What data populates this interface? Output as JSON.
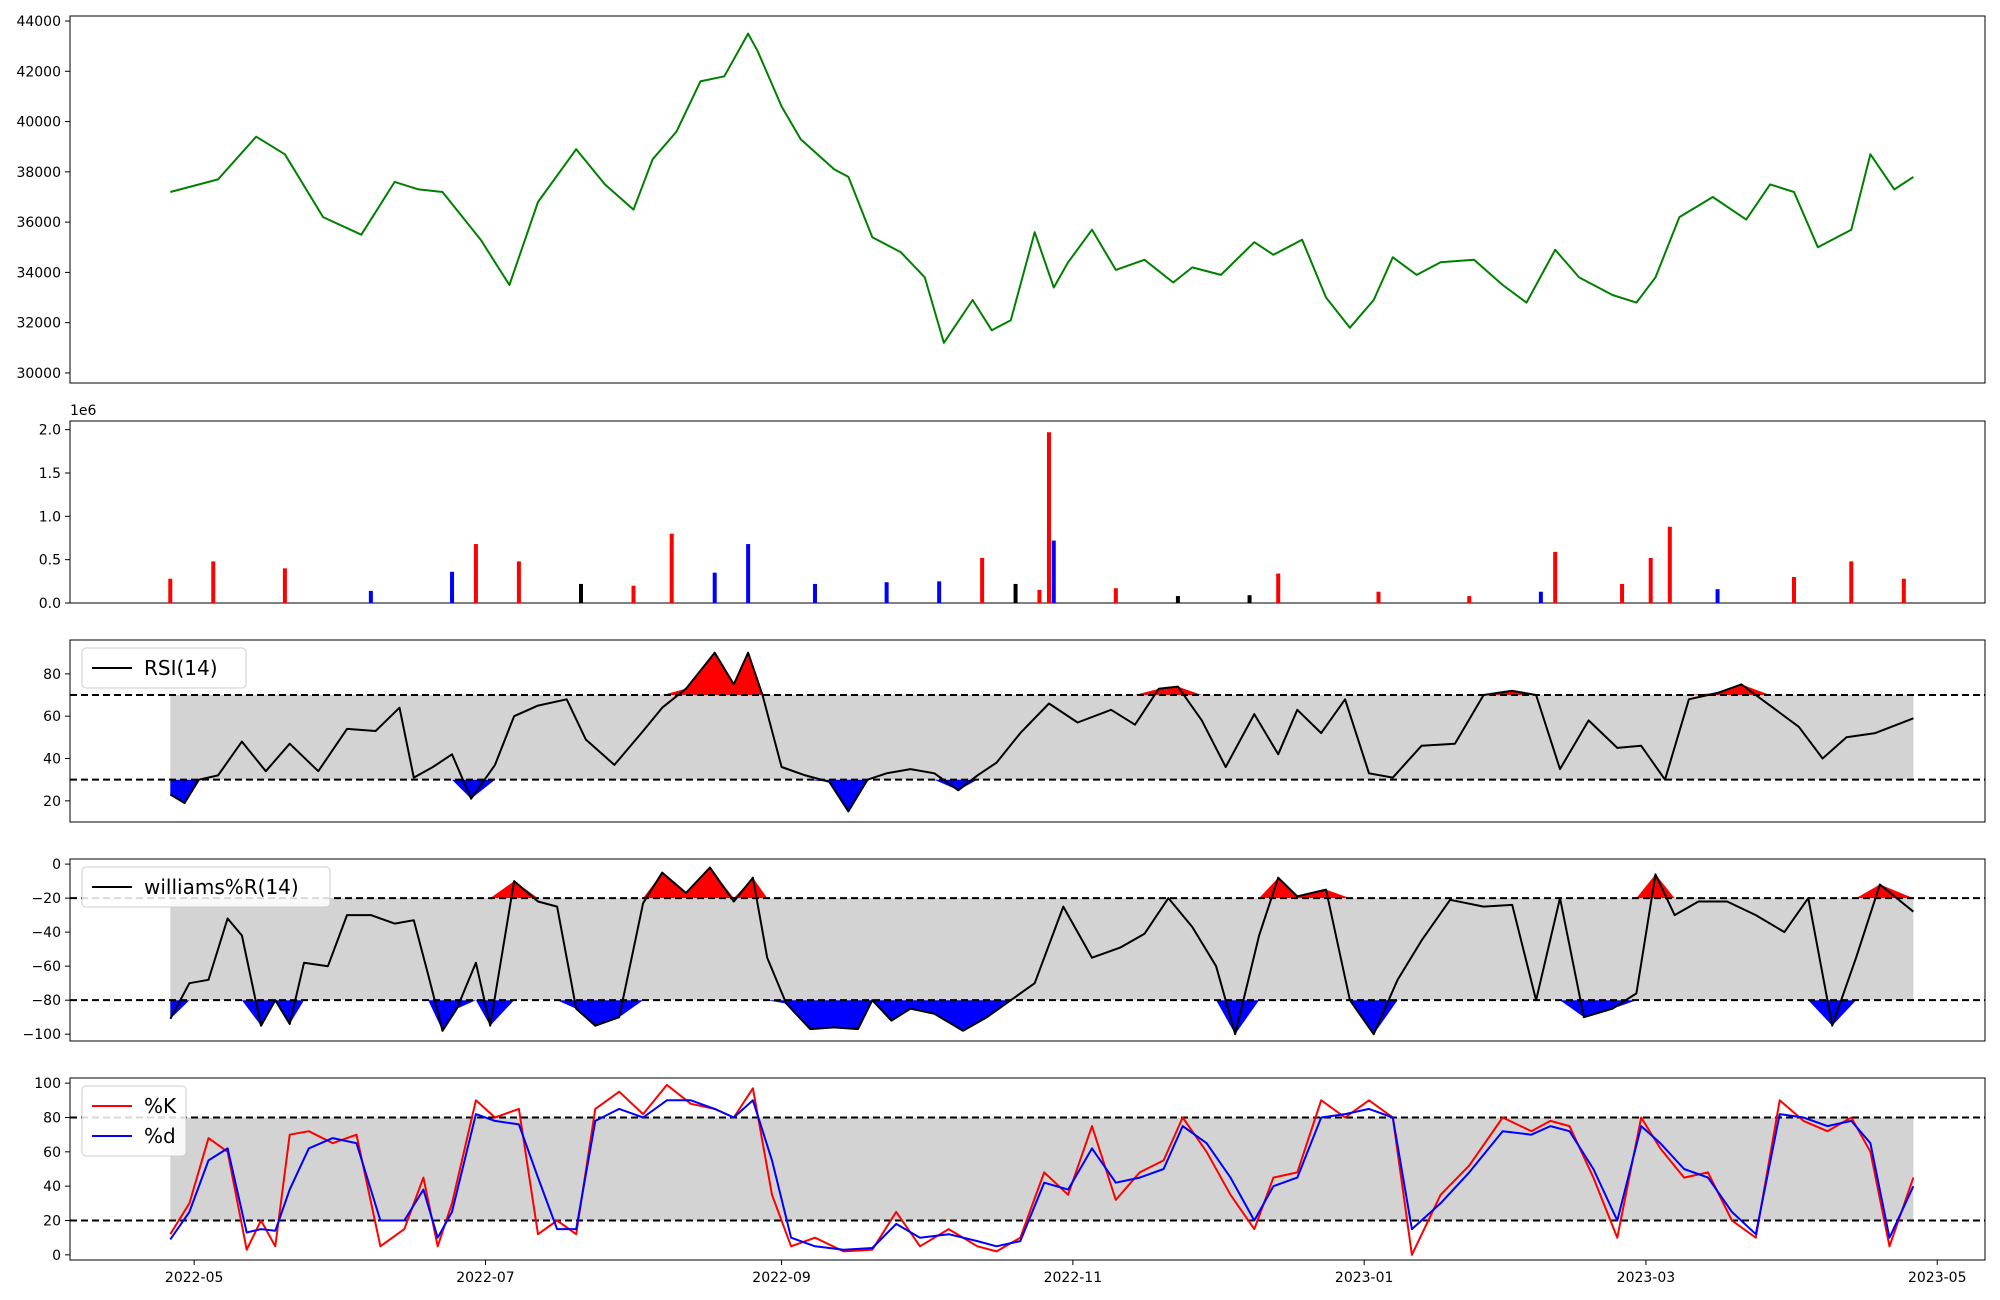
{
  "chart_data": [
    {
      "type": "line",
      "panel": "price",
      "color": "#008000",
      "ylim": [
        29600,
        44200
      ],
      "yticks": [
        "30000",
        "32000",
        "34000",
        "36000",
        "38000",
        "40000",
        "42000",
        "44000"
      ],
      "ytick_values": [
        30000,
        32000,
        34000,
        36000,
        38000,
        40000,
        42000,
        44000
      ],
      "x": [
        "2022-04-26",
        "2022-05-06",
        "2022-05-14",
        "2022-05-20",
        "2022-05-28",
        "2022-06-05",
        "2022-06-12",
        "2022-06-17",
        "2022-06-22",
        "2022-06-30",
        "2022-07-06",
        "2022-07-12",
        "2022-07-20",
        "2022-07-26",
        "2022-08-01",
        "2022-08-05",
        "2022-08-10",
        "2022-08-15",
        "2022-08-20",
        "2022-08-25",
        "2022-08-27",
        "2022-09-01",
        "2022-09-05",
        "2022-09-12",
        "2022-09-15",
        "2022-09-20",
        "2022-09-26",
        "2022-10-01",
        "2022-10-05",
        "2022-10-11",
        "2022-10-15",
        "2022-10-19",
        "2022-10-24",
        "2022-10-28",
        "2022-10-31",
        "2022-11-05",
        "2022-11-10",
        "2022-11-16",
        "2022-11-22",
        "2022-11-26",
        "2022-12-02",
        "2022-12-09",
        "2022-12-13",
        "2022-12-19",
        "2022-12-24",
        "2022-12-29",
        "2023-01-03",
        "2023-01-07",
        "2023-01-12",
        "2023-01-17",
        "2023-01-24",
        "2023-01-30",
        "2023-02-04",
        "2023-02-10",
        "2023-02-15",
        "2023-02-22",
        "2023-02-27",
        "2023-03-03",
        "2023-03-08",
        "2023-03-15",
        "2023-03-22",
        "2023-03-27",
        "2023-04-01",
        "2023-04-06",
        "2023-04-13",
        "2023-04-17",
        "2023-04-22",
        "2023-04-26"
      ],
      "values": [
        37200,
        37700,
        39400,
        38700,
        36200,
        35500,
        37600,
        37300,
        37200,
        35300,
        33500,
        36800,
        38900,
        37500,
        36500,
        38500,
        39600,
        41600,
        41800,
        43500,
        42800,
        40600,
        39300,
        38100,
        37800,
        35400,
        34800,
        33800,
        31200,
        32900,
        31700,
        32100,
        35600,
        33400,
        34400,
        35700,
        34100,
        34500,
        33600,
        34200,
        33900,
        35200,
        34700,
        35300,
        33000,
        31800,
        32900,
        34600,
        33900,
        34400,
        34500,
        33500,
        32800,
        34900,
        33800,
        33100,
        32800,
        33800,
        36200,
        37000,
        36100,
        37500,
        37200,
        35000,
        35700,
        38700,
        37300,
        37800
      ]
    },
    {
      "type": "bar",
      "panel": "volume",
      "multiplier_label": "1e6",
      "ylim": [
        0,
        2.1
      ],
      "yticks": [
        "0.0",
        "0.5",
        "1.0",
        "1.5",
        "2.0"
      ],
      "ytick_values": [
        0,
        0.5,
        1.0,
        1.5,
        2.0
      ],
      "colors": {
        "up": "#ff0000",
        "down": "#0000ff",
        "flat": "#000000"
      },
      "x": [
        "2022-04-26",
        "2022-05-05",
        "2022-05-20",
        "2022-06-07",
        "2022-06-24",
        "2022-06-29",
        "2022-07-08",
        "2022-07-21",
        "2022-08-01",
        "2022-08-09",
        "2022-08-18",
        "2022-08-25",
        "2022-09-08",
        "2022-09-23",
        "2022-10-04",
        "2022-10-13",
        "2022-10-20",
        "2022-10-25",
        "2022-10-27",
        "2022-10-28",
        "2022-11-10",
        "2022-11-23",
        "2022-12-08",
        "2022-12-14",
        "2023-01-04",
        "2023-01-23",
        "2023-02-07",
        "2023-02-10",
        "2023-02-24",
        "2023-03-02",
        "2023-03-06",
        "2023-03-16",
        "2023-04-01",
        "2023-04-13",
        "2023-04-24"
      ],
      "values": [
        0.28,
        0.48,
        0.4,
        0.14,
        0.36,
        0.68,
        0.48,
        0.22,
        0.2,
        0.8,
        0.35,
        0.68,
        0.22,
        0.24,
        0.25,
        0.52,
        0.22,
        0.15,
        1.97,
        0.72,
        0.17,
        0.08,
        0.09,
        0.34,
        0.13,
        0.08,
        0.13,
        0.59,
        0.22,
        0.52,
        0.88,
        0.16,
        0.3,
        0.48,
        0.28
      ],
      "directions": [
        "up",
        "up",
        "up",
        "down",
        "down",
        "up",
        "up",
        "flat",
        "up",
        "up",
        "down",
        "down",
        "down",
        "down",
        "down",
        "up",
        "flat",
        "up",
        "up",
        "down",
        "up",
        "flat",
        "flat",
        "up",
        "up",
        "up",
        "down",
        "up",
        "up",
        "up",
        "up",
        "down",
        "up",
        "up",
        "up"
      ]
    },
    {
      "type": "line",
      "panel": "rsi",
      "series": [
        {
          "name": "RSI(14)",
          "color": "#000000"
        }
      ],
      "ylim": [
        10,
        96
      ],
      "yticks": [
        "20",
        "40",
        "60",
        "80"
      ],
      "ytick_values": [
        20,
        40,
        60,
        80
      ],
      "thresholds": [
        30,
        70
      ],
      "fill_colors": {
        "band": "#d3d3d3",
        "over": "#ff0000",
        "under": "#0000ff"
      },
      "x": [
        "2022-04-26",
        "2022-04-29",
        "2022-05-02",
        "2022-05-06",
        "2022-05-11",
        "2022-05-16",
        "2022-05-21",
        "2022-05-27",
        "2022-06-02",
        "2022-06-08",
        "2022-06-13",
        "2022-06-16",
        "2022-06-20",
        "2022-06-24",
        "2022-06-28",
        "2022-07-03",
        "2022-07-07",
        "2022-07-12",
        "2022-07-18",
        "2022-07-22",
        "2022-07-28",
        "2022-08-03",
        "2022-08-07",
        "2022-08-12",
        "2022-08-18",
        "2022-08-22",
        "2022-08-25",
        "2022-08-28",
        "2022-09-01",
        "2022-09-06",
        "2022-09-11",
        "2022-09-15",
        "2022-09-19",
        "2022-09-23",
        "2022-09-28",
        "2022-10-03",
        "2022-10-08",
        "2022-10-12",
        "2022-10-16",
        "2022-10-21",
        "2022-10-27",
        "2022-11-02",
        "2022-11-09",
        "2022-11-14",
        "2022-11-19",
        "2022-11-23",
        "2022-11-28",
        "2022-12-03",
        "2022-12-09",
        "2022-12-14",
        "2022-12-18",
        "2022-12-23",
        "2022-12-28",
        "2023-01-02",
        "2023-01-07",
        "2023-01-13",
        "2023-01-20",
        "2023-01-26",
        "2023-02-01",
        "2023-02-06",
        "2023-02-11",
        "2023-02-17",
        "2023-02-23",
        "2023-02-28",
        "2023-03-05",
        "2023-03-10",
        "2023-03-16",
        "2023-03-21",
        "2023-03-27",
        "2023-04-02",
        "2023-04-07",
        "2023-04-12",
        "2023-04-18",
        "2023-04-26"
      ],
      "values": [
        23,
        19,
        30,
        32,
        48,
        34,
        47,
        34,
        54,
        53,
        64,
        31,
        36,
        42,
        21,
        37,
        60,
        65,
        68,
        49,
        37,
        53,
        64,
        73,
        90,
        75,
        90,
        70,
        36,
        32,
        29,
        15,
        30,
        33,
        35,
        33,
        25,
        32,
        38,
        52,
        66,
        57,
        63,
        56,
        73,
        74,
        58,
        36,
        61,
        42,
        63,
        52,
        68,
        33,
        31,
        46,
        47,
        70,
        72,
        70,
        35,
        58,
        45,
        46,
        30,
        68,
        71,
        75,
        65,
        55,
        40,
        50,
        52,
        59
      ]
    },
    {
      "type": "line",
      "panel": "williams",
      "series": [
        {
          "name": "williams%R(14)",
          "color": "#000000"
        }
      ],
      "ylim": [
        -104,
        3
      ],
      "yticks": [
        "−100",
        "−80",
        "−60",
        "−40",
        "−20",
        "0"
      ],
      "ytick_values": [
        -100,
        -80,
        -60,
        -40,
        -20,
        0
      ],
      "thresholds": [
        -80,
        -20
      ],
      "fill_colors": {
        "band": "#d3d3d3",
        "over": "#ff0000",
        "under": "#0000ff"
      },
      "x": [
        "2022-04-26",
        "2022-04-30",
        "2022-05-04",
        "2022-05-08",
        "2022-05-11",
        "2022-05-15",
        "2022-05-18",
        "2022-05-21",
        "2022-05-24",
        "2022-05-29",
        "2022-06-02",
        "2022-06-07",
        "2022-06-12",
        "2022-06-16",
        "2022-06-19",
        "2022-06-22",
        "2022-06-25",
        "2022-06-29",
        "2022-07-02",
        "2022-07-07",
        "2022-07-12",
        "2022-07-16",
        "2022-07-20",
        "2022-07-24",
        "2022-07-29",
        "2022-08-03",
        "2022-08-07",
        "2022-08-12",
        "2022-08-17",
        "2022-08-22",
        "2022-08-26",
        "2022-08-29",
        "2022-09-02",
        "2022-09-07",
        "2022-09-12",
        "2022-09-17",
        "2022-09-20",
        "2022-09-24",
        "2022-09-28",
        "2022-10-03",
        "2022-10-09",
        "2022-10-14",
        "2022-10-19",
        "2022-10-24",
        "2022-10-30",
        "2022-11-05",
        "2022-11-11",
        "2022-11-16",
        "2022-11-21",
        "2022-11-26",
        "2022-12-01",
        "2022-12-05",
        "2022-12-10",
        "2022-12-14",
        "2022-12-18",
        "2022-12-24",
        "2022-12-29",
        "2023-01-03",
        "2023-01-08",
        "2023-01-13",
        "2023-01-19",
        "2023-01-26",
        "2023-02-01",
        "2023-02-06",
        "2023-02-11",
        "2023-02-16",
        "2023-02-22",
        "2023-02-27",
        "2023-03-03",
        "2023-03-07",
        "2023-03-12",
        "2023-03-18",
        "2023-03-24",
        "2023-03-30",
        "2023-04-04",
        "2023-04-09",
        "2023-04-14",
        "2023-04-19",
        "2023-04-26"
      ],
      "values": [
        -91,
        -70,
        -68,
        -32,
        -42,
        -95,
        -80,
        -94,
        -58,
        -60,
        -30,
        -30,
        -35,
        -33,
        -65,
        -98,
        -85,
        -58,
        -95,
        -10,
        -22,
        -25,
        -85,
        -95,
        -90,
        -23,
        -5,
        -17,
        -2,
        -22,
        -8,
        -55,
        -82,
        -97,
        -96,
        -97,
        -80,
        -92,
        -85,
        -88,
        -98,
        -90,
        -80,
        -70,
        -25,
        -55,
        -49,
        -41,
        -20,
        -37,
        -60,
        -100,
        -42,
        -8,
        -19,
        -15,
        -80,
        -100,
        -68,
        -45,
        -21,
        -25,
        -24,
        -80,
        -20,
        -90,
        -85,
        -76,
        -6,
        -30,
        -22,
        -22,
        -30,
        -40,
        -20,
        -95,
        -55,
        -12,
        -28
      ]
    },
    {
      "type": "line",
      "panel": "stochastic",
      "legend_position": "upper-left",
      "ylim": [
        -3,
        103
      ],
      "yticks": [
        "0",
        "20",
        "40",
        "60",
        "80",
        "100"
      ],
      "ytick_values": [
        0,
        20,
        40,
        60,
        80,
        100
      ],
      "thresholds": [
        20,
        80
      ],
      "fill_colors": {
        "band": "#d3d3d3"
      },
      "xticks": [
        "2022-05",
        "2022-07",
        "2022-09",
        "2022-11",
        "2023-01",
        "2023-03",
        "2023-05"
      ],
      "xlim": [
        "2022-04-05",
        "2023-05-11"
      ],
      "x": [
        "2022-04-26",
        "2022-04-30",
        "2022-05-04",
        "2022-05-08",
        "2022-05-12",
        "2022-05-15",
        "2022-05-18",
        "2022-05-21",
        "2022-05-25",
        "2022-05-30",
        "2022-06-04",
        "2022-06-09",
        "2022-06-14",
        "2022-06-18",
        "2022-06-21",
        "2022-06-24",
        "2022-06-29",
        "2022-07-03",
        "2022-07-08",
        "2022-07-12",
        "2022-07-16",
        "2022-07-20",
        "2022-07-24",
        "2022-07-29",
        "2022-08-03",
        "2022-08-08",
        "2022-08-13",
        "2022-08-18",
        "2022-08-22",
        "2022-08-26",
        "2022-08-30",
        "2022-09-03",
        "2022-09-08",
        "2022-09-14",
        "2022-09-20",
        "2022-09-25",
        "2022-09-30",
        "2022-10-06",
        "2022-10-12",
        "2022-10-16",
        "2022-10-21",
        "2022-10-26",
        "2022-10-31",
        "2022-11-05",
        "2022-11-10",
        "2022-11-15",
        "2022-11-20",
        "2022-11-24",
        "2022-11-29",
        "2022-12-04",
        "2022-12-09",
        "2022-12-13",
        "2022-12-18",
        "2022-12-23",
        "2022-12-28",
        "2023-01-02",
        "2023-01-07",
        "2023-01-11",
        "2023-01-17",
        "2023-01-23",
        "2023-01-30",
        "2023-02-05",
        "2023-02-09",
        "2023-02-13",
        "2023-02-18",
        "2023-02-23",
        "2023-02-28",
        "2023-03-04",
        "2023-03-09",
        "2023-03-14",
        "2023-03-19",
        "2023-03-24",
        "2023-03-29",
        "2023-04-03",
        "2023-04-08",
        "2023-04-13",
        "2023-04-17",
        "2023-04-21",
        "2023-04-26"
      ],
      "series": [
        {
          "name": "%K",
          "color": "#ff0000",
          "values": [
            12,
            30,
            68,
            60,
            3,
            20,
            5,
            70,
            72,
            65,
            70,
            5,
            15,
            45,
            5,
            30,
            90,
            80,
            85,
            12,
            20,
            12,
            85,
            95,
            82,
            99,
            88,
            85,
            80,
            97,
            35,
            5,
            10,
            2,
            3,
            25,
            5,
            15,
            5,
            2,
            10,
            48,
            35,
            75,
            32,
            48,
            55,
            80,
            60,
            35,
            15,
            45,
            48,
            90,
            80,
            90,
            80,
            0,
            35,
            52,
            80,
            72,
            78,
            75,
            45,
            10,
            80,
            62,
            45,
            48,
            20,
            10,
            90,
            78,
            72,
            80,
            60,
            5,
            45
          ]
        },
        {
          "name": "%d",
          "color": "#0000ff",
          "values": [
            9,
            25,
            55,
            62,
            13,
            15,
            14,
            38,
            62,
            68,
            65,
            20,
            20,
            38,
            10,
            25,
            82,
            78,
            76,
            45,
            15,
            15,
            78,
            85,
            80,
            90,
            90,
            85,
            80,
            90,
            55,
            10,
            5,
            3,
            4,
            18,
            10,
            12,
            8,
            5,
            8,
            42,
            38,
            62,
            42,
            45,
            50,
            75,
            65,
            45,
            20,
            40,
            45,
            80,
            82,
            85,
            80,
            15,
            30,
            48,
            72,
            70,
            75,
            72,
            50,
            20,
            75,
            65,
            50,
            45,
            25,
            12,
            82,
            80,
            75,
            78,
            65,
            10,
            40
          ]
        }
      ]
    }
  ]
}
